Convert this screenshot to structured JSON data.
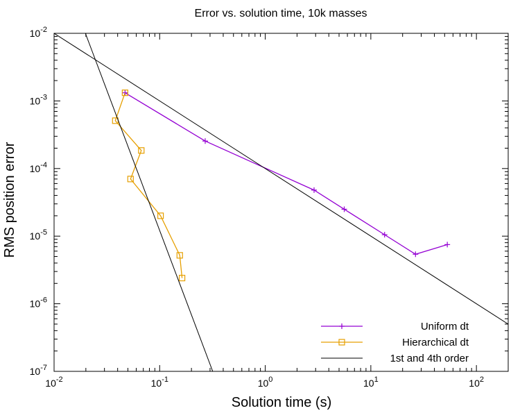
{
  "chart_data": {
    "type": "line",
    "title": "Error vs. solution time, 10k masses",
    "xlabel": "Solution time (s)",
    "ylabel": "RMS position error",
    "xscale": "log",
    "yscale": "log",
    "xlim": [
      0.01,
      200
    ],
    "ylim": [
      1e-07,
      0.01
    ],
    "grid": false,
    "legend_position": "bottom-right",
    "x_ticks": [
      {
        "base": "10",
        "exp": "-2",
        "value": 0.01
      },
      {
        "base": "10",
        "exp": "-1",
        "value": 0.1
      },
      {
        "base": "10",
        "exp": "0",
        "value": 1
      },
      {
        "base": "10",
        "exp": "1",
        "value": 10
      },
      {
        "base": "10",
        "exp": "2",
        "value": 100
      }
    ],
    "y_ticks": [
      {
        "base": "10",
        "exp": "-7",
        "value": 1e-07
      },
      {
        "base": "10",
        "exp": "-6",
        "value": 1e-06
      },
      {
        "base": "10",
        "exp": "-5",
        "value": 1e-05
      },
      {
        "base": "10",
        "exp": "-4",
        "value": 0.0001
      },
      {
        "base": "10",
        "exp": "-3",
        "value": 0.001
      },
      {
        "base": "10",
        "exp": "-2",
        "value": 0.01
      }
    ],
    "series": [
      {
        "name": "Uniform dt",
        "color": "#9400d3",
        "marker": "plus",
        "x": [
          0.047,
          0.27,
          2.9,
          5.6,
          13.5,
          26.5,
          53
        ],
        "y": [
          0.00132,
          0.000255,
          4.8e-05,
          2.5e-05,
          1.05e-05,
          5.4e-06,
          7.5e-06
        ]
      },
      {
        "name": "Hierarchical dt",
        "color": "#e69f00",
        "marker": "square",
        "x": [
          0.047,
          0.038,
          0.067,
          0.053,
          0.102,
          0.155,
          0.163
        ],
        "y": [
          0.00132,
          0.00051,
          0.000185,
          7e-05,
          2e-05,
          5.2e-06,
          2.4e-06
        ]
      },
      {
        "name": "1st and 4th order",
        "color": "#000000",
        "marker": "none",
        "lines": [
          {
            "x": [
              0.01,
              200
            ],
            "y": [
              0.01,
              5e-07
            ]
          },
          {
            "x": [
              0.0198,
              0.318
            ],
            "y": [
              0.01,
              1e-07
            ]
          }
        ]
      }
    ]
  }
}
